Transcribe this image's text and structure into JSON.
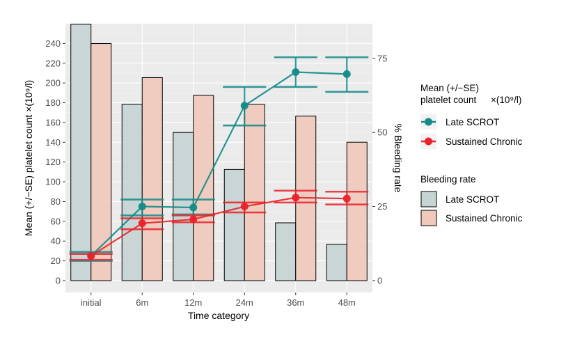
{
  "chart_data": {
    "type": "bar+line",
    "categories": [
      "initial",
      "6m",
      "12m",
      "24m",
      "36m",
      "48m"
    ],
    "xlabel": "Time category",
    "ylabel": "Mean (+/−SE) platelet count ×(10⁹/l)",
    "y2label": "% Bleeding rate",
    "ylim": [
      -12,
      260
    ],
    "y2lim": [
      -4,
      86.7
    ],
    "y_ticks": [
      "0",
      "20",
      "40",
      "60",
      "80",
      "100",
      "120",
      "140",
      "160",
      "180",
      "200",
      "220",
      "240"
    ],
    "y2_ticks": [
      "0",
      "25",
      "50",
      "75"
    ],
    "grid": true,
    "bars": [
      {
        "name": "Late SCROT",
        "color": "#c6d4d4",
        "values": [
          86.5,
          59.5,
          50,
          37.5,
          19.5,
          12.2
        ]
      },
      {
        "name": "Sustained Chronic",
        "color": "#f1c9bb",
        "values": [
          80,
          68.5,
          62.5,
          59.5,
          55.5,
          46.7
        ]
      }
    ],
    "series": [
      {
        "name": "Late SCROT",
        "color": "#128b89",
        "values": [
          25,
          75,
          74,
          177,
          211,
          209
        ],
        "se_low": [
          20,
          66,
          67,
          157,
          196,
          191
        ],
        "se_high": [
          29,
          82,
          82,
          196,
          226,
          226
        ]
      },
      {
        "name": "Sustained Chronic",
        "color": "#e8232a",
        "values": [
          25,
          58,
          62,
          75,
          84,
          83
        ],
        "se_low": [
          21,
          52,
          59,
          69,
          79,
          77
        ],
        "se_high": [
          27,
          63,
          66,
          79,
          91,
          90
        ]
      }
    ],
    "legend_position": "right",
    "legend_lines_title": [
      "Mean (+/−SE)",
      "platelet count"
    ],
    "legend_lines_title_math": "×(10⁹/l)",
    "legend_bars_title": "Bleeding rate"
  }
}
